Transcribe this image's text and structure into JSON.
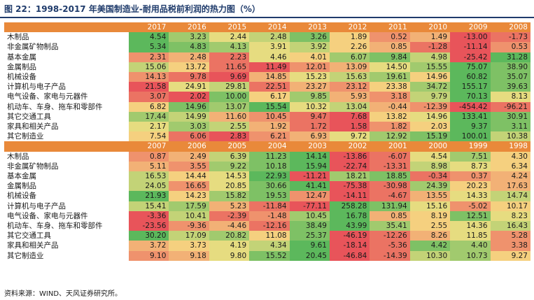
{
  "title": "图 22：1998-2017 年美国制造业-耐用品税前利润的热力图（%）",
  "source": "资料来源：WIND、天风证券研究所。",
  "colors": {
    "header_bg": "#e9893a",
    "scale_low": "#e8545a",
    "scale_mid": "#f7e084",
    "scale_high": "#5cb85c"
  },
  "chart_data": {
    "type": "heatmap",
    "rows": [
      "木制品",
      "非金属矿物制品",
      "基本金属",
      "金属制品",
      "机械设备",
      "计算机与电子产品",
      "电气设备、家电与元器件",
      "机动车、车身、拖车和零部件",
      "其它交通工具",
      "家具和相关产品",
      "其它制造业"
    ],
    "blocks": [
      {
        "years": [
          "2017",
          "2016",
          "2015",
          "2014",
          "2013",
          "2012",
          "2011",
          "2010",
          "2009",
          "2008"
        ],
        "values": [
          [
            "4.54",
            "3.23",
            "2.44",
            "2.48",
            "3.26",
            "1.89",
            "0.52",
            "1.49",
            "-13.00",
            "-1.73"
          ],
          [
            "5.34",
            "4.83",
            "4.13",
            "3.91",
            "3.92",
            "2.26",
            "0.85",
            "-1.28",
            "-11.14",
            "0.53"
          ],
          [
            "2.31",
            "2.48",
            "2.23",
            "4.46",
            "4.01",
            "6.07",
            "9.84",
            "4.98",
            "-25.42",
            "31.28"
          ],
          [
            "15.06",
            "13.72",
            "11.65",
            "11.49",
            "12.01",
            "13.09",
            "14.50",
            "15.55",
            "75.07",
            "38.90"
          ],
          [
            "14.13",
            "9.78",
            "9.69",
            "14.85",
            "15.23",
            "15.63",
            "19.61",
            "14.96",
            "60.82",
            "35.07"
          ],
          [
            "21.58",
            "24.91",
            "29.81",
            "22.51",
            "23.27",
            "23.12",
            "23.38",
            "34.72",
            "155.17",
            "39.63"
          ],
          [
            "3.07",
            "2.02",
            "10.00",
            "6.17",
            "9.85",
            "5.93",
            "3.18",
            "9.79",
            "70.13",
            "8.13"
          ],
          [
            "6.82",
            "14.96",
            "13.07",
            "15.54",
            "10.32",
            "13.04",
            "-0.44",
            "-12.39",
            "-454.42",
            "-96.21"
          ],
          [
            "17.44",
            "14.99",
            "11.60",
            "10.45",
            "9.47",
            "7.68",
            "13.82",
            "14.96",
            "133.41",
            "30.91"
          ],
          [
            "2.17",
            "3.03",
            "2.55",
            "1.92",
            "1.72",
            "1.58",
            "1.82",
            "2.03",
            "9.37",
            "3.11"
          ],
          [
            "7.54",
            "6.06",
            "2.83",
            "6.21",
            "6.93",
            "9.72",
            "12.92",
            "15.19",
            "100.01",
            "10.38"
          ]
        ]
      },
      {
        "years": [
          "2007",
          "2006",
          "2005",
          "2004",
          "2003",
          "2002",
          "2001",
          "2000",
          "1999",
          "1998"
        ],
        "values": [
          [
            "0.87",
            "2.49",
            "6.39",
            "11.23",
            "14.14",
            "-13.86",
            "-6.07",
            "4.54",
            "7.51",
            "4.30"
          ],
          [
            "5.11",
            "3.55",
            "9.22",
            "10.18",
            "15.94",
            "-22.74",
            "-13.31",
            "8.98",
            "8.73",
            "6.34"
          ],
          [
            "16.53",
            "14.44",
            "14.53",
            "22.93",
            "-11.21",
            "18.21",
            "18.85",
            "-0.34",
            "0.37",
            "4.24"
          ],
          [
            "24.05",
            "16.65",
            "20.85",
            "30.66",
            "41.41",
            "-75.38",
            "-30.98",
            "24.39",
            "20.23",
            "17.63"
          ],
          [
            "21.93",
            "14.23",
            "15.82",
            "19.53",
            "12.47",
            "-14.11",
            "-4.67",
            "13.55",
            "14.33",
            "14.74"
          ],
          [
            "15.41",
            "17.59",
            "5.23",
            "-11.84",
            "-77.11",
            "258.28",
            "131.94",
            "15.16",
            "-5.02",
            "10.17"
          ],
          [
            "-3.36",
            "10.41",
            "-2.39",
            "-1.48",
            "10.45",
            "16.78",
            "0.85",
            "8.19",
            "12.51",
            "8.23"
          ],
          [
            "-23.56",
            "-9.36",
            "-4.46",
            "-12.16",
            "38.49",
            "43.99",
            "35.41",
            "2.55",
            "14.36",
            "16.43"
          ],
          [
            "30.20",
            "17.09",
            "20.82",
            "11.08",
            "25.37",
            "-46.19",
            "-12.26",
            "8.26",
            "11.85",
            "5.28"
          ],
          [
            "3.72",
            "3.73",
            "4.19",
            "4.34",
            "9.61",
            "-18.14",
            "-5.36",
            "4.42",
            "4.40",
            "3.38"
          ],
          [
            "9.10",
            "9.18",
            "9.80",
            "15.52",
            "20.45",
            "-46.84",
            "-14.39",
            "10.30",
            "10.73",
            "9.27"
          ]
        ]
      }
    ]
  }
}
